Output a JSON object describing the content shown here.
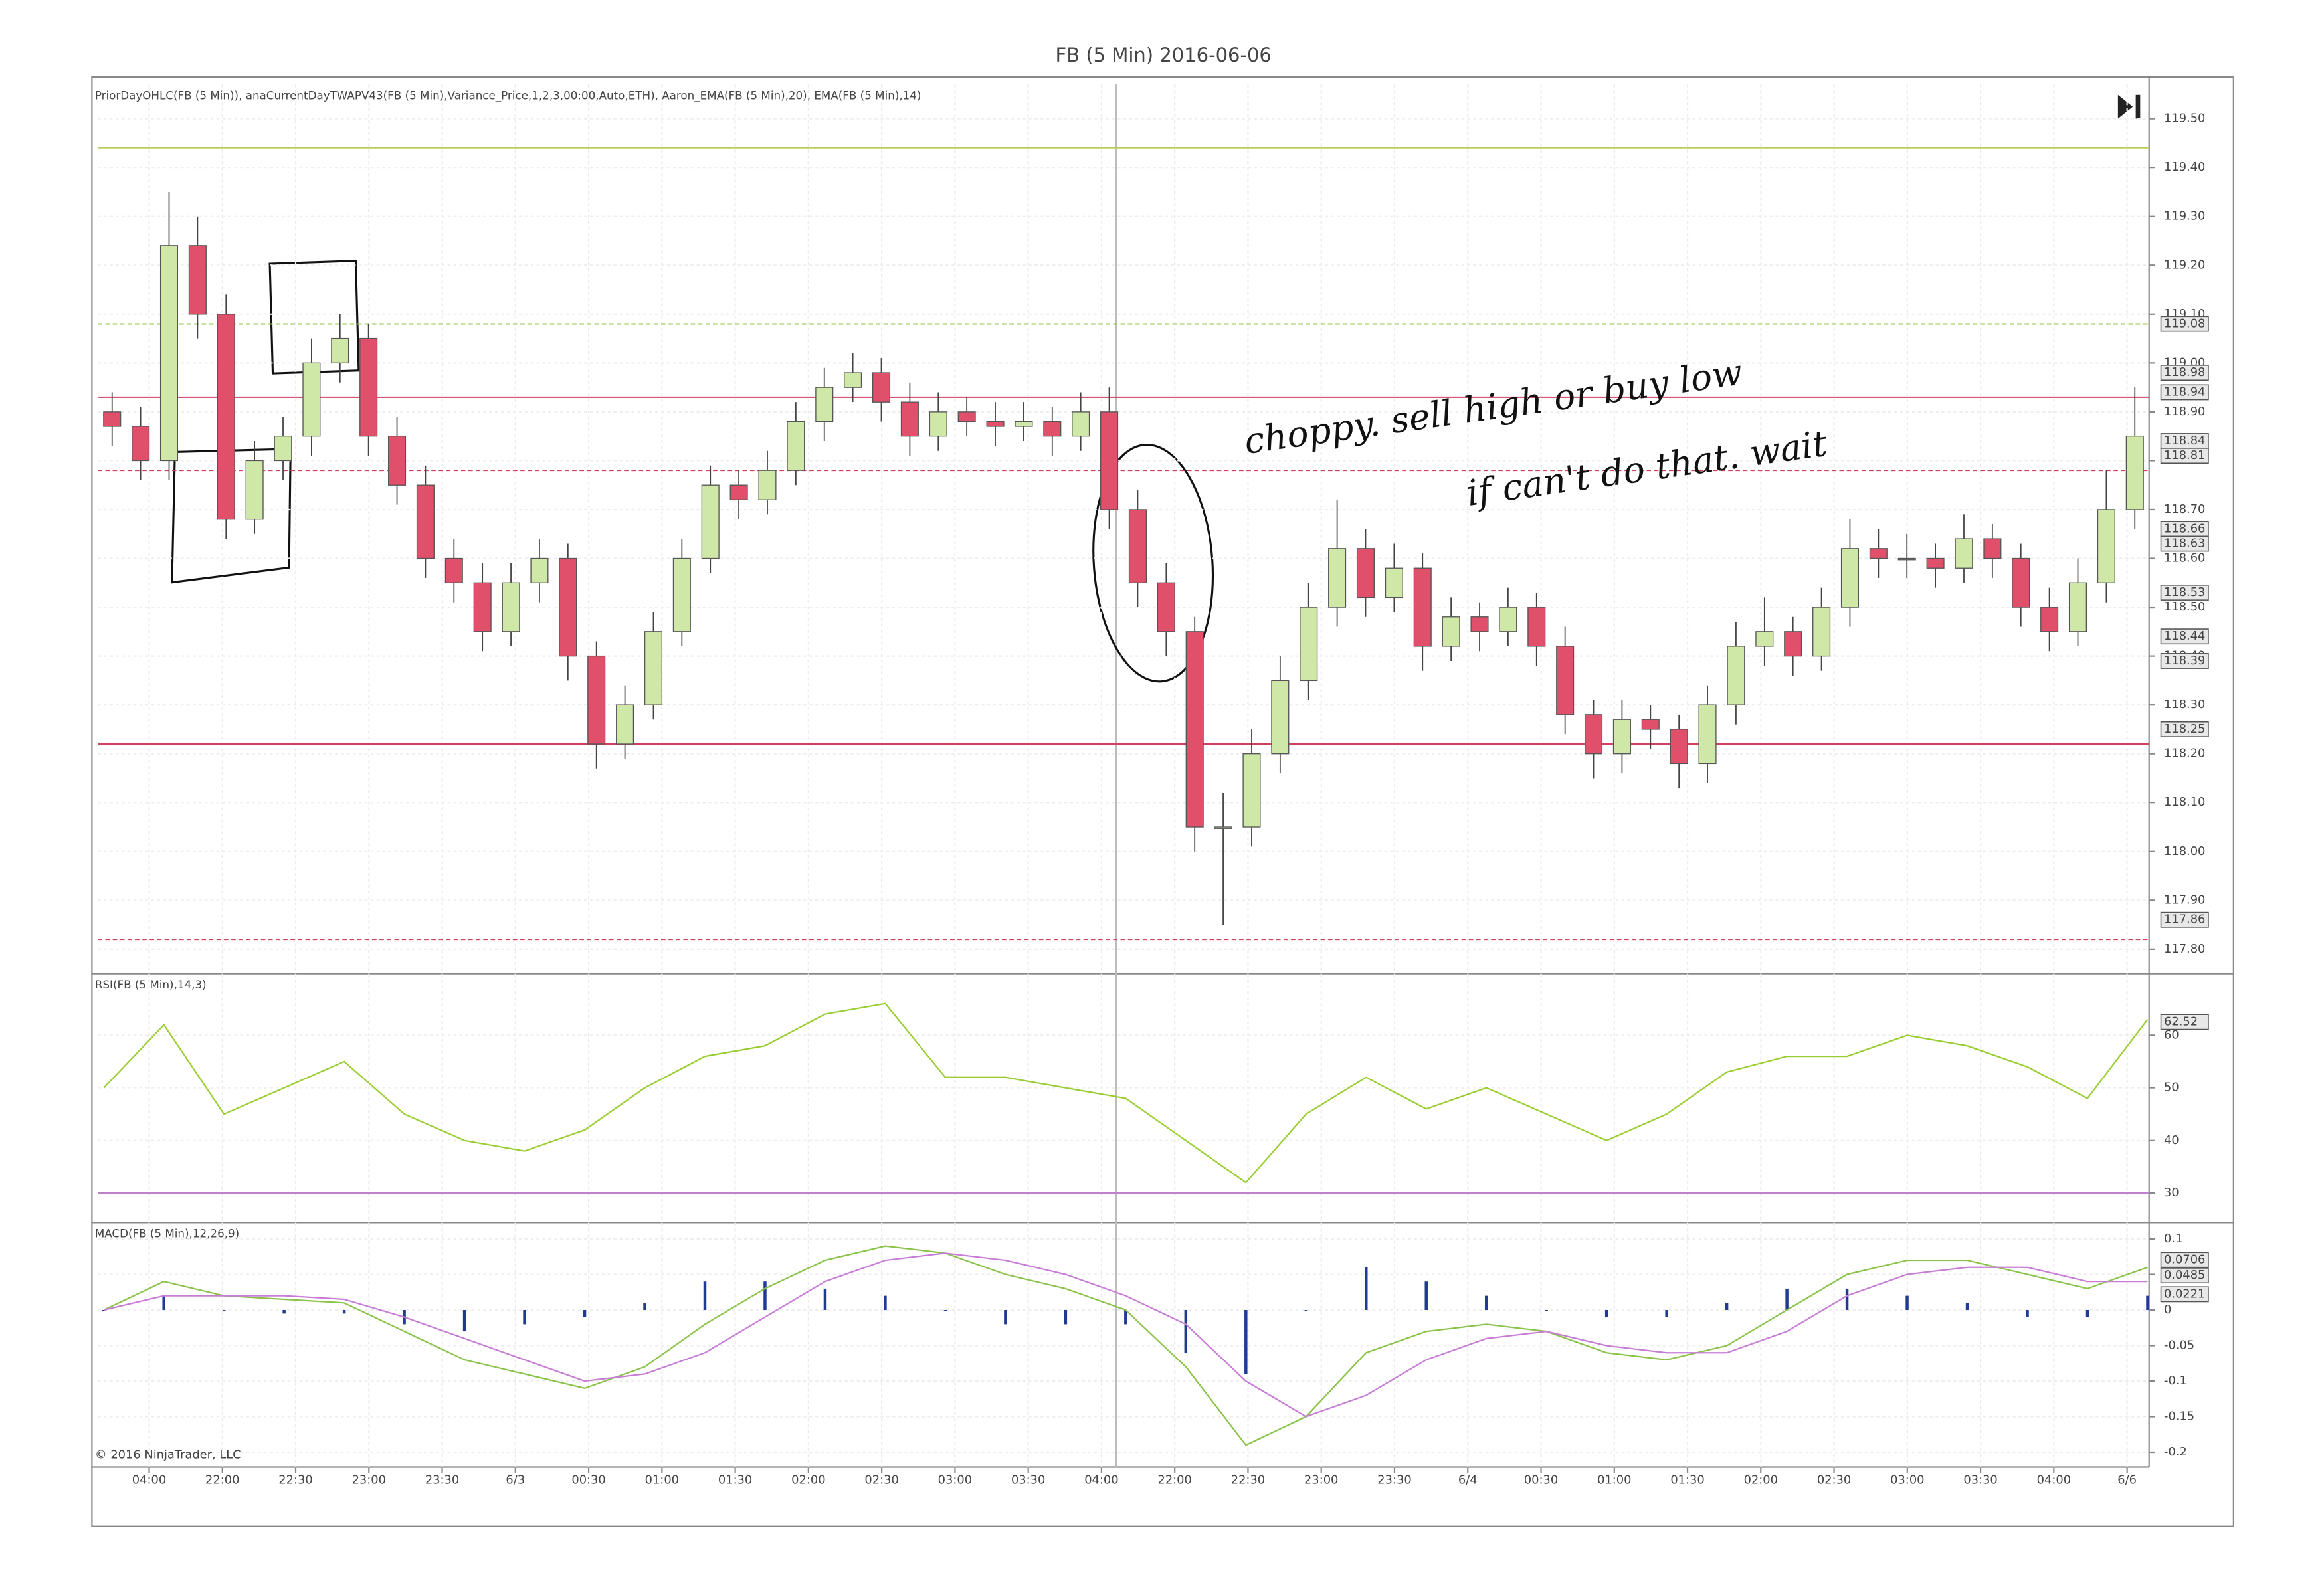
{
  "chart_data": [
    {
      "type": "candlestick",
      "title": "FB (5 Min)  2016-06-06",
      "indicator_label": "PriorDayOHLC(FB (5 Min)), anaCurrentDayTWAPV43(FB (5 Min),Variance_Price,1,2,3,00:00,Auto,ETH), Aaron_EMA(FB (5 Min),20), EMA(FB (5 Min),14)",
      "ylim": [
        117.75,
        119.57
      ],
      "yticks": [
        {
          "value": 119.5,
          "label": "119.50"
        },
        {
          "value": 119.4,
          "label": "119.40"
        },
        {
          "value": 119.3,
          "label": "119.30"
        },
        {
          "value": 119.2,
          "label": "119.20"
        },
        {
          "value": 119.1,
          "label": "119.10"
        },
        {
          "value": 119.0,
          "label": "119.00"
        },
        {
          "value": 118.9,
          "label": "118.90"
        },
        {
          "value": 118.8,
          "label": "118.80"
        },
        {
          "value": 118.7,
          "label": "118.70"
        },
        {
          "value": 118.6,
          "label": "118.60"
        },
        {
          "value": 118.5,
          "label": "118.50"
        },
        {
          "value": 118.4,
          "label": "118.40"
        },
        {
          "value": 118.3,
          "label": "118.30"
        },
        {
          "value": 118.2,
          "label": "118.20"
        },
        {
          "value": 118.1,
          "label": "118.10"
        },
        {
          "value": 118.0,
          "label": "118.00"
        },
        {
          "value": 117.9,
          "label": "117.90"
        },
        {
          "value": 117.8,
          "label": "117.80"
        }
      ],
      "up_color": "#cfe8a8",
      "down_color": "#e0506a",
      "open": [
        118.9,
        118.87,
        118.8,
        119.24,
        119.1,
        118.68,
        118.8,
        118.85,
        119.0,
        119.05,
        118.85,
        118.75,
        118.6,
        118.55,
        118.45,
        118.55,
        118.6,
        118.4,
        118.22,
        118.3,
        118.45,
        118.6,
        118.75,
        118.72,
        118.78,
        118.88,
        118.95,
        118.98,
        118.92,
        118.85,
        118.9,
        118.88,
        118.87,
        118.88,
        118.85,
        118.9,
        118.7,
        118.55,
        118.45,
        118.05,
        118.05,
        118.2,
        118.35,
        118.5,
        118.62,
        118.52,
        118.58,
        118.42,
        118.48,
        118.45,
        118.5,
        118.42,
        118.28,
        118.2,
        118.27,
        118.25,
        118.18,
        118.3,
        118.42,
        118.45,
        118.4,
        118.5,
        118.62,
        118.6,
        118.6,
        118.58,
        118.64,
        118.6,
        118.5,
        118.45,
        118.55,
        118.7
      ],
      "high": [
        118.94,
        118.91,
        119.35,
        119.3,
        119.14,
        118.84,
        118.89,
        119.05,
        119.1,
        119.08,
        118.89,
        118.79,
        118.64,
        118.59,
        118.59,
        118.64,
        118.63,
        118.43,
        118.34,
        118.49,
        118.64,
        118.79,
        118.78,
        118.82,
        118.92,
        118.99,
        119.02,
        119.01,
        118.96,
        118.94,
        118.93,
        118.92,
        118.92,
        118.91,
        118.94,
        118.95,
        118.74,
        118.59,
        118.48,
        118.12,
        118.25,
        118.4,
        118.55,
        118.72,
        118.66,
        118.63,
        118.61,
        118.52,
        118.51,
        118.54,
        118.53,
        118.46,
        118.31,
        118.31,
        118.3,
        118.28,
        118.34,
        118.47,
        118.52,
        118.48,
        118.54,
        118.68,
        118.66,
        118.65,
        118.63,
        118.69,
        118.67,
        118.63,
        118.54,
        118.6,
        118.78,
        118.95
      ],
      "low": [
        118.83,
        118.76,
        118.76,
        119.05,
        118.64,
        118.65,
        118.76,
        118.81,
        118.96,
        118.81,
        118.71,
        118.56,
        118.51,
        118.41,
        118.42,
        118.51,
        118.35,
        118.17,
        118.19,
        118.27,
        118.42,
        118.57,
        118.68,
        118.69,
        118.75,
        118.84,
        118.92,
        118.88,
        118.81,
        118.82,
        118.85,
        118.83,
        118.84,
        118.81,
        118.82,
        118.66,
        118.5,
        118.4,
        118.0,
        117.85,
        118.01,
        118.16,
        118.31,
        118.46,
        118.48,
        118.49,
        118.37,
        118.39,
        118.41,
        118.42,
        118.38,
        118.24,
        118.15,
        118.16,
        118.21,
        118.13,
        118.14,
        118.26,
        118.38,
        118.36,
        118.37,
        118.46,
        118.56,
        118.56,
        118.54,
        118.55,
        118.56,
        118.46,
        118.41,
        118.42,
        118.51,
        118.66
      ],
      "close": [
        118.87,
        118.8,
        119.24,
        119.1,
        118.68,
        118.8,
        118.85,
        119.0,
        119.05,
        118.85,
        118.75,
        118.6,
        118.55,
        118.45,
        118.55,
        118.6,
        118.4,
        118.22,
        118.3,
        118.45,
        118.6,
        118.75,
        118.72,
        118.78,
        118.88,
        118.95,
        118.98,
        118.92,
        118.85,
        118.9,
        118.88,
        118.87,
        118.88,
        118.85,
        118.9,
        118.7,
        118.55,
        118.45,
        118.05,
        118.05,
        118.2,
        118.35,
        118.5,
        118.62,
        118.52,
        118.58,
        118.42,
        118.48,
        118.45,
        118.5,
        118.42,
        118.28,
        118.2,
        118.27,
        118.25,
        118.18,
        118.3,
        118.42,
        118.45,
        118.4,
        118.5,
        118.62,
        118.6,
        118.6,
        118.58,
        118.64,
        118.6,
        118.5,
        118.45,
        118.55,
        118.7,
        118.85
      ],
      "levels": [
        {
          "value": 119.44,
          "color": "#b9cf5a"
        },
        {
          "value": 119.08,
          "color": "#9cc34a"
        },
        {
          "value": 118.93,
          "color": "#d04060"
        },
        {
          "value": 118.78,
          "color": "#d04060"
        },
        {
          "value": 118.22,
          "color": "#d04060"
        },
        {
          "value": 117.82,
          "color": "#d04060"
        }
      ],
      "markers": [
        119.08,
        118.98,
        118.94,
        118.84,
        118.81,
        118.66,
        118.63,
        118.53,
        118.44,
        118.39,
        118.25,
        117.86
      ],
      "annotations": [
        "choppy. sell high or buy low",
        "if can't do that. wait"
      ]
    },
    {
      "type": "line",
      "label": "RSI(FB (5 Min),14,3)",
      "ylim": [
        24.4,
        71.7
      ],
      "yticks": [
        30,
        40,
        50,
        60
      ],
      "series": [
        {
          "color": "#9acd32",
          "values": [
            50,
            62,
            45,
            50,
            55,
            45,
            40,
            38,
            42,
            50,
            56,
            58,
            64,
            66,
            52,
            52,
            50,
            48,
            40,
            32,
            45,
            52,
            46,
            50,
            45,
            40,
            45,
            53,
            56,
            56,
            60,
            58,
            54,
            48,
            63
          ]
        }
      ],
      "levels": [
        {
          "value": 30,
          "color": "#c080d0"
        }
      ],
      "markers": [
        62.52
      ]
    },
    {
      "type": "macd",
      "label": "MACD(FB (5 Min),12,26,9)",
      "ylim": [
        -0.221,
        0.123
      ],
      "yticks": [
        0.1,
        0.05,
        0,
        -0.05,
        -0.1,
        -0.15,
        -0.2
      ],
      "series": [
        {
          "color": "#8bc34a",
          "values": [
            0,
            0.04,
            0.02,
            0.015,
            0.01,
            -0.03,
            -0.07,
            -0.09,
            -0.11,
            -0.08,
            -0.02,
            0.03,
            0.07,
            0.09,
            0.08,
            0.05,
            0.03,
            0,
            -0.08,
            -0.19,
            -0.15,
            -0.06,
            -0.03,
            -0.02,
            -0.03,
            -0.06,
            -0.07,
            -0.05,
            0,
            0.05,
            0.07,
            0.07,
            0.05,
            0.03,
            0.06
          ]
        },
        {
          "color": "#c77dd6",
          "values": [
            0,
            0.02,
            0.02,
            0.02,
            0.015,
            -0.01,
            -0.04,
            -0.07,
            -0.1,
            -0.09,
            -0.06,
            -0.01,
            0.04,
            0.07,
            0.08,
            0.07,
            0.05,
            0.02,
            -0.02,
            -0.1,
            -0.15,
            -0.12,
            -0.07,
            -0.04,
            -0.03,
            -0.05,
            -0.06,
            -0.06,
            -0.03,
            0.02,
            0.05,
            0.06,
            0.06,
            0.04,
            0.04
          ]
        }
      ],
      "histogram": {
        "color": "#1f3a93",
        "values": [
          0,
          0.02,
          0,
          -0.005,
          -0.005,
          -0.02,
          -0.03,
          -0.02,
          -0.01,
          0.01,
          0.04,
          0.04,
          0.03,
          0.02,
          0,
          -0.02,
          -0.02,
          -0.02,
          -0.06,
          -0.09,
          0,
          0.06,
          0.04,
          0.02,
          0,
          -0.01,
          -0.01,
          0.01,
          0.03,
          0.03,
          0.02,
          0.01,
          -0.01,
          -0.01,
          0.02
        ]
      },
      "markers": [
        0.0706,
        0.0485,
        0.0221
      ],
      "xtick_labels": [
        "04:00",
        "22:00",
        "22:30",
        "23:00",
        "23:30",
        "6/3",
        "00:30",
        "01:00",
        "01:30",
        "02:00",
        "02:30",
        "03:00",
        "03:30",
        "04:00",
        "22:00",
        "22:30",
        "23:00",
        "23:30",
        "6/4",
        "00:30",
        "01:00",
        "01:30",
        "02:00",
        "02:30",
        "03:00",
        "03:30",
        "04:00",
        "6/6"
      ],
      "copyright": "© 2016 NinjaTrader, LLC"
    }
  ]
}
